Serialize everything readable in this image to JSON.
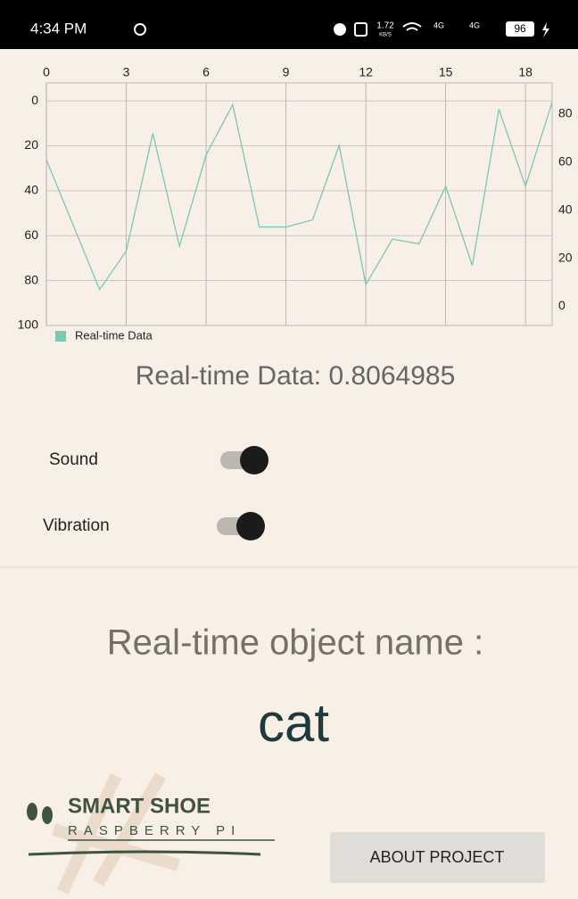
{
  "status_bar": {
    "time": "4:34 PM",
    "speed": "1.72",
    "speed_unit": "KB/S",
    "network": "4G",
    "battery": "96"
  },
  "chart_data": {
    "type": "line",
    "x": [
      0,
      1,
      2,
      3,
      4,
      5,
      6,
      7,
      8,
      9,
      10,
      11,
      12,
      13,
      14,
      15,
      16,
      17,
      18,
      19
    ],
    "series": [
      {
        "name": "Real-time Data",
        "color": "#7cc7b6",
        "axis": "y2",
        "values": [
          61,
          34,
          7,
          23,
          72,
          25,
          63,
          84,
          33,
          33,
          36,
          67,
          9,
          28,
          26,
          50,
          17,
          82,
          50,
          85
        ]
      }
    ],
    "xlim": [
      0,
      19
    ],
    "xticks": [
      0,
      3,
      6,
      9,
      12,
      15,
      18
    ],
    "ylim": [
      -8,
      100
    ],
    "y_inverted": true,
    "yticks": [
      0,
      20,
      40,
      60,
      80,
      100
    ],
    "y2lim": [
      -8,
      93
    ],
    "y2ticks": [
      0,
      20,
      40,
      60,
      80
    ],
    "grid": true,
    "legend": "bottom-left"
  },
  "readout": "Real-time Data: 0.8064985",
  "settings": [
    {
      "label": "Sound",
      "on": true
    },
    {
      "label": "Vibration",
      "on": true
    }
  ],
  "object_label": "Real-time object name :",
  "object_name": "cat",
  "brand": {
    "title": "SMART SHOE",
    "subtitle": "RASPBERRY PI"
  },
  "button": "ABOUT PROJECT"
}
